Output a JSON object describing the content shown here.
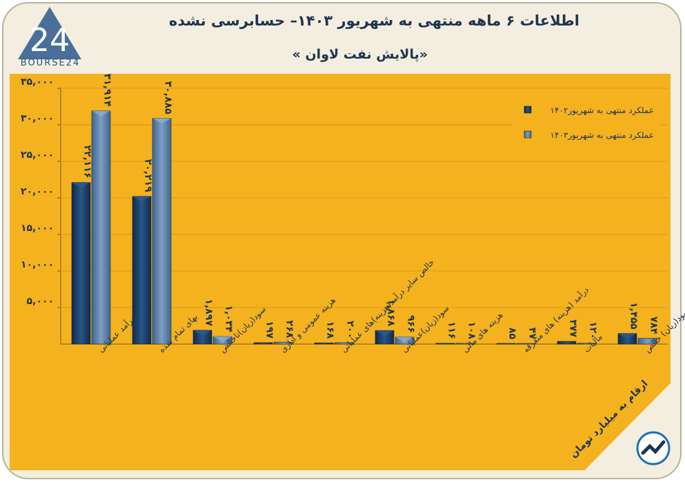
{
  "header": {
    "title": "اطلاعات ۶ ماهه منتهی به شهریور ۱۴۰۳– حسابرسی نشده",
    "subtitle": "«پالایش نفت لاوان »",
    "logo_text": "BOURSE24",
    "logo_number": "24"
  },
  "footer": {
    "units_note": "ارقام به میلیارد تومان"
  },
  "colors": {
    "series_1402": "#1b3d66",
    "series_1403": "#5a7ea8",
    "plot_bg": "#f5b21f",
    "frame_bg": "#f3eedf"
  },
  "chart_data": {
    "type": "bar",
    "categories": [
      "درآمد عملیاتی",
      "بهای تمام شده",
      "سود(زیان)ناخالص",
      "هزینه عمومی و اداری",
      "خالص سایر درآمد(هزینه)های عملیاتی",
      "سود(زیان)عملیاتی",
      "هزینه های مالی",
      "درآمد (هزینه) های متفرقه",
      "مالیات",
      "سود(زیان) خالص"
    ],
    "series": [
      {
        "name": "عملکرد منتهی به شهریور۱۴۰۲",
        "values": [
          22116,
          20219,
          1897,
          197,
          168,
          1868,
          116,
          85,
          377,
          1455
        ],
        "labels": [
          "۲۲,۱۱۶",
          "۲۰,۲۱۹",
          "۱,۸۹۷",
          "۱۹۷",
          "۱۶۸",
          "۱,۸۶۸",
          "۱۱۶",
          "۸۵",
          "۳۷۷",
          "۱,۴۵۵"
        ]
      },
      {
        "name": "عملکرد منتهی به شهریور۱۴۰۳",
        "values": [
          31914,
          30885,
          1034,
          268,
          200,
          966,
          108,
          47,
          120,
          784
        ],
        "labels": [
          "۳۱,۹۱۴",
          "۳۰,۸۸۵",
          "۱,۰۳۴",
          "۲۶۸",
          "۲۰۰",
          "۹۶۶",
          "۱۰۸",
          "۴۷",
          "۱۲۰",
          "۷۸۴"
        ]
      }
    ],
    "yticks": [
      "۳۵,۰۰۰",
      "۳۰,۰۰۰",
      "۲۵,۰۰۰",
      "۲۰,۰۰۰",
      "۱۵,۰۰۰",
      "۱۰,۰۰۰",
      "۵,۰۰۰"
    ],
    "ytick_values": [
      35000,
      30000,
      25000,
      20000,
      15000,
      10000,
      5000
    ],
    "ylim": [
      0,
      35000
    ],
    "grid": true,
    "legend_position": "top-right"
  }
}
